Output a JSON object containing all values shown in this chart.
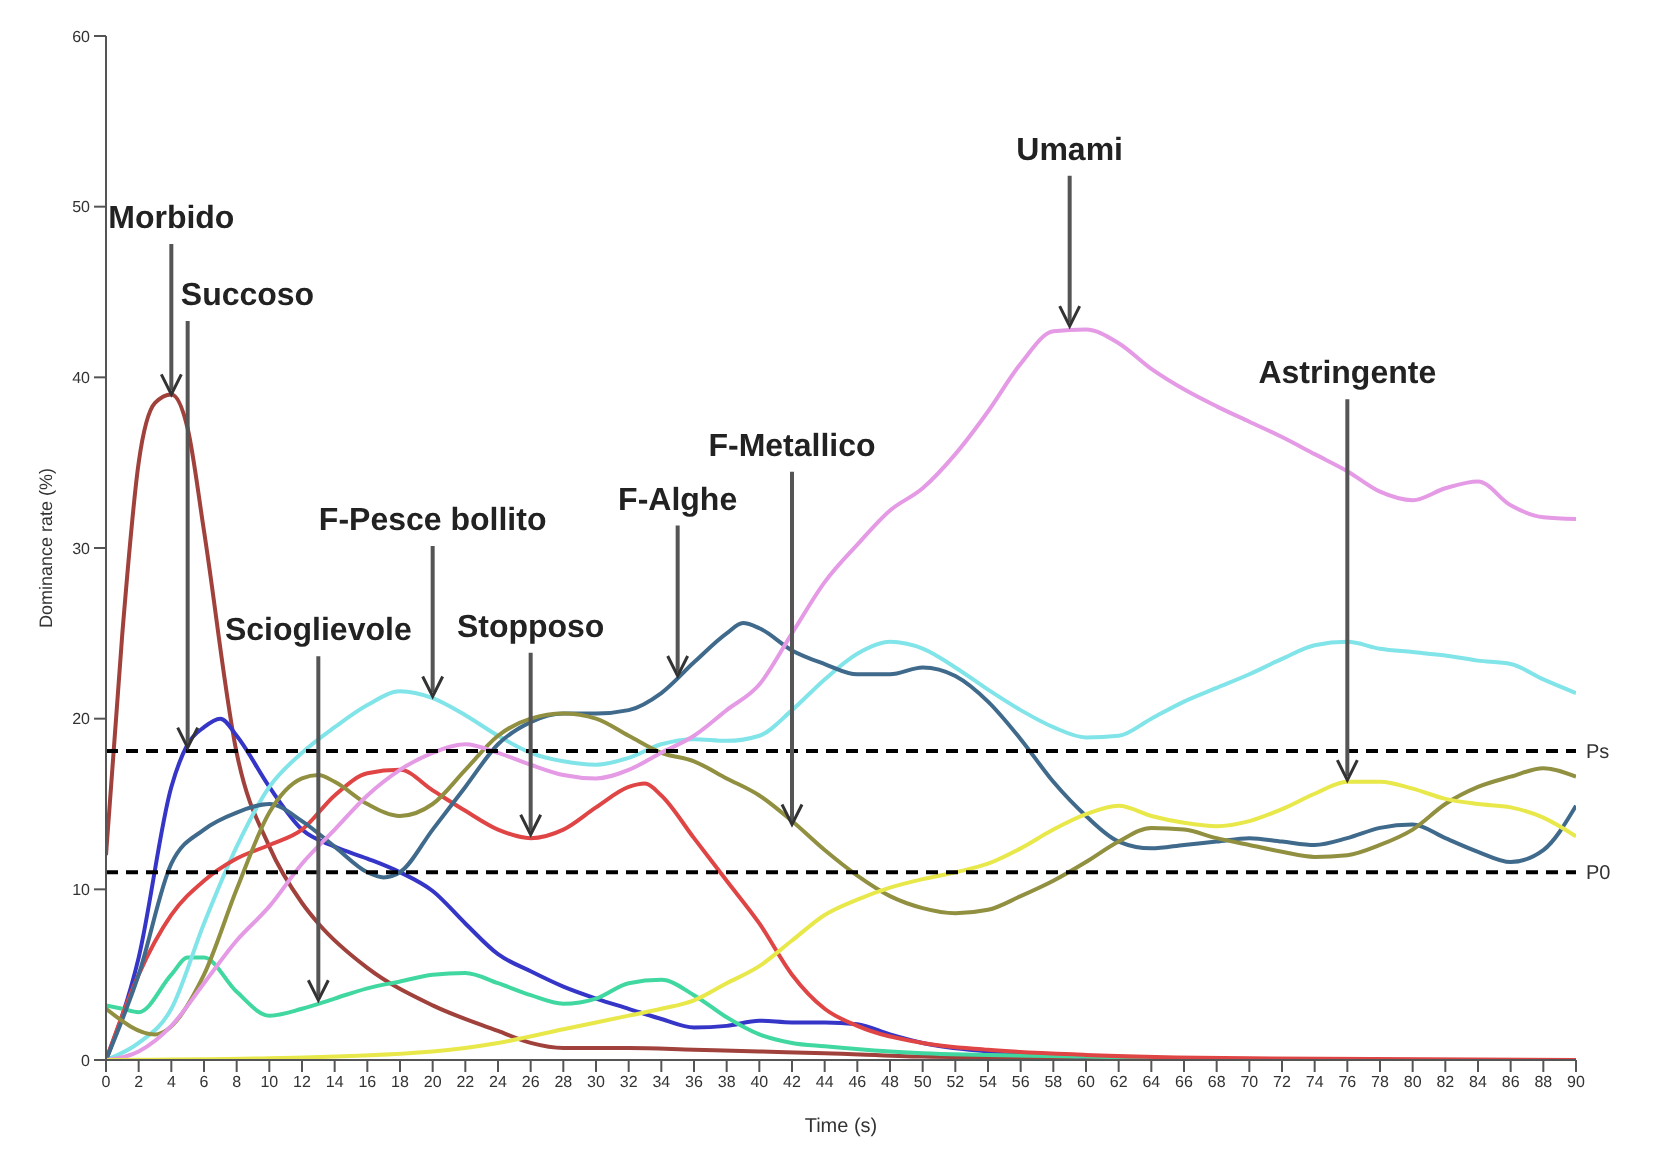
{
  "chart_data": {
    "type": "line",
    "xlabel": "Time (s)",
    "ylabel": "Dominance rate (%)",
    "xlim": [
      0,
      90
    ],
    "xticks": [
      0,
      2,
      4,
      6,
      8,
      10,
      12,
      14,
      16,
      18,
      20,
      22,
      24,
      26,
      28,
      30,
      32,
      34,
      36,
      38,
      40,
      42,
      44,
      46,
      48,
      50,
      52,
      54,
      56,
      58,
      60,
      62,
      64,
      66,
      68,
      70,
      72,
      74,
      76,
      78,
      80,
      82,
      84,
      86,
      88,
      90
    ],
    "ylim": [
      0,
      60
    ],
    "yticks": [
      0,
      10,
      20,
      30,
      40,
      50,
      60
    ],
    "grid": false,
    "legend": false,
    "marker": "none",
    "line_style": "solid",
    "series": [
      {
        "color": "#a0413c",
        "x": [
          0,
          1,
          2,
          3,
          4,
          5,
          6,
          8,
          10,
          12,
          13,
          16,
          20,
          24,
          26,
          28,
          32,
          36,
          40,
          44,
          50,
          60,
          70,
          90
        ],
        "values": [
          12,
          25,
          35,
          38.5,
          39,
          37,
          31,
          18,
          12.5,
          9.2,
          8,
          5.4,
          3.2,
          1.7,
          1,
          0.7,
          0.7,
          0.6,
          0.5,
          0.4,
          0.2,
          0.1,
          0,
          0
        ]
      },
      {
        "color": "#3535c8",
        "x": [
          0,
          2,
          4,
          5,
          6,
          7,
          8,
          10,
          12,
          14,
          16,
          18,
          20,
          22,
          24,
          26,
          28,
          30,
          32,
          34,
          36,
          38,
          40,
          42,
          44,
          46,
          48,
          50,
          54,
          60
        ],
        "values": [
          0,
          6,
          16,
          18.5,
          19.5,
          20,
          19,
          16,
          13.5,
          12.5,
          11.8,
          11,
          9.9,
          8,
          6.2,
          5.2,
          4.3,
          3.6,
          3,
          2.4,
          1.9,
          2,
          2.3,
          2.2,
          2.2,
          2.1,
          1.5,
          1,
          0.5,
          0.2
        ]
      },
      {
        "color": "#40d8a0",
        "x": [
          0,
          1,
          2,
          4,
          5,
          6,
          8,
          10,
          12,
          14,
          16,
          18,
          20,
          22,
          24,
          26,
          28,
          30,
          32,
          34,
          36,
          38,
          40,
          42,
          44,
          50,
          60,
          70,
          90
        ],
        "values": [
          3.2,
          3,
          2.8,
          5,
          6,
          6,
          4,
          2.6,
          3,
          3.6,
          4.2,
          4.6,
          5,
          5.1,
          4.5,
          3.8,
          3.3,
          3.6,
          4.5,
          4.7,
          3.8,
          2.5,
          1.5,
          1,
          0.8,
          0.4,
          0.2,
          0,
          0
        ]
      },
      {
        "color": "#80e4e8",
        "x": [
          0,
          2,
          4,
          6,
          8,
          10,
          12,
          14,
          16,
          18,
          20,
          22,
          24,
          26,
          28,
          30,
          32,
          34,
          36,
          38,
          40,
          42,
          44,
          46,
          48,
          50,
          52,
          54,
          56,
          58,
          60,
          62,
          64,
          66,
          68,
          70,
          72,
          74,
          76,
          78,
          80,
          82,
          84,
          86,
          88,
          90
        ],
        "values": [
          0,
          1,
          3,
          8,
          12.5,
          16,
          18,
          19.5,
          20.8,
          21.6,
          21.2,
          20.2,
          19,
          18,
          17.5,
          17.3,
          17.7,
          18.5,
          18.8,
          18.7,
          19,
          20.5,
          22.3,
          23.8,
          24.5,
          24.1,
          23,
          21.7,
          20.5,
          19.5,
          18.9,
          19,
          20,
          21,
          21.8,
          22.6,
          23.5,
          24.3,
          24.5,
          24.1,
          23.9,
          23.7,
          23.4,
          23.2,
          22.3,
          21.5
        ]
      },
      {
        "color": "#e04545",
        "x": [
          0,
          2,
          4,
          6,
          8,
          10,
          12,
          14,
          16,
          18,
          20,
          22,
          24,
          26,
          28,
          30,
          32,
          33,
          34,
          36,
          38,
          40,
          42,
          44,
          46,
          50,
          54,
          60,
          70,
          90
        ],
        "values": [
          0,
          5,
          8.5,
          10.5,
          11.8,
          12.6,
          13.5,
          15.5,
          16.8,
          17,
          15.8,
          14.6,
          13.5,
          13,
          13.5,
          14.8,
          16,
          16.2,
          15.5,
          13,
          10.5,
          8,
          5,
          3,
          2,
          1,
          0.6,
          0.3,
          0.1,
          0
        ]
      },
      {
        "color": "#3f6a8c",
        "x": [
          0,
          2,
          4,
          6,
          8,
          10,
          12,
          14,
          16,
          17,
          18,
          20,
          22,
          24,
          26,
          28,
          30,
          32,
          34,
          36,
          38,
          39,
          40,
          42,
          44,
          46,
          48,
          50,
          52,
          54,
          56,
          58,
          60,
          62,
          64,
          66,
          68,
          70,
          72,
          74,
          76,
          78,
          80,
          82,
          84,
          86,
          88,
          90
        ],
        "values": [
          0,
          5,
          11.5,
          13.5,
          14.5,
          15,
          14,
          12.5,
          11,
          10.7,
          11,
          13.5,
          16,
          18.5,
          19.8,
          20.3,
          20.3,
          20.5,
          21.5,
          23.3,
          25,
          25.6,
          25.3,
          24,
          23.2,
          22.6,
          22.6,
          23,
          22.5,
          21,
          18.8,
          16.3,
          14.3,
          12.8,
          12.4,
          12.6,
          12.8,
          13,
          12.8,
          12.6,
          13,
          13.6,
          13.8,
          13,
          12.2,
          11.6,
          12.3,
          14.9
        ]
      },
      {
        "color": "#909040",
        "x": [
          0,
          3,
          6,
          8,
          10,
          12,
          13,
          14,
          16,
          18,
          20,
          22,
          24,
          26,
          28,
          30,
          32,
          34,
          36,
          38,
          40,
          42,
          44,
          46,
          48,
          50,
          52,
          54,
          56,
          58,
          60,
          62,
          64,
          66,
          68,
          70,
          72,
          74,
          76,
          78,
          80,
          82,
          84,
          86,
          88,
          90
        ],
        "values": [
          3,
          1.5,
          5,
          10,
          14.5,
          16.5,
          16.7,
          16.3,
          15,
          14.3,
          15,
          17,
          19,
          20,
          20.3,
          20,
          19,
          18,
          17.5,
          16.5,
          15.5,
          14,
          12.3,
          10.8,
          9.6,
          8.9,
          8.6,
          8.8,
          9.6,
          10.5,
          11.6,
          12.8,
          13.6,
          13.5,
          13,
          12.6,
          12.2,
          11.9,
          12,
          12.6,
          13.5,
          15,
          16,
          16.6,
          17.1,
          16.6
        ]
      },
      {
        "color": "#e49ae4",
        "x": [
          0,
          2,
          4,
          6,
          8,
          10,
          12,
          14,
          16,
          18,
          20,
          22,
          24,
          26,
          28,
          30,
          32,
          34,
          36,
          38,
          40,
          42,
          44,
          46,
          48,
          50,
          52,
          54,
          56,
          58,
          60,
          62,
          64,
          66,
          68,
          70,
          72,
          74,
          76,
          78,
          80,
          82,
          84,
          86,
          88,
          90
        ],
        "values": [
          0,
          0.5,
          2,
          4.5,
          7,
          9,
          11.5,
          13.5,
          15.5,
          17,
          18,
          18.5,
          18,
          17.3,
          16.7,
          16.5,
          17,
          18,
          19,
          20.5,
          22,
          25,
          28,
          30.2,
          32.2,
          33.5,
          35.5,
          38,
          40.8,
          42.7,
          42.8,
          42,
          40.5,
          39.3,
          38.3,
          37.4,
          36.5,
          35.5,
          34.5,
          33.3,
          32.8,
          33.5,
          33.9,
          32.5,
          31.8,
          31.7
        ]
      },
      {
        "color": "#e8e84a",
        "x": [
          0,
          10,
          20,
          24,
          28,
          32,
          34,
          36,
          38,
          40,
          42,
          44,
          46,
          48,
          50,
          52,
          54,
          56,
          58,
          60,
          62,
          64,
          66,
          68,
          70,
          72,
          74,
          76,
          78,
          80,
          82,
          84,
          86,
          88,
          90
        ],
        "values": [
          0,
          0.1,
          0.5,
          1,
          1.8,
          2.6,
          3,
          3.5,
          4.5,
          5.5,
          7,
          8.5,
          9.4,
          10.1,
          10.6,
          11,
          11.5,
          12.4,
          13.5,
          14.4,
          14.9,
          14.3,
          13.9,
          13.7,
          14,
          14.7,
          15.6,
          16.3,
          16.3,
          15.9,
          15.3,
          15,
          14.8,
          14.2,
          13.1
        ]
      }
    ],
    "ref_lines": [
      {
        "axis": "y",
        "value": 18.1,
        "label": "Ps",
        "color": "#000000",
        "line_style": "dashed"
      },
      {
        "axis": "y",
        "value": 11,
        "label": "P0",
        "color": "#000000",
        "line_style": "dashed"
      }
    ],
    "annotations": [
      {
        "text": "Morbido",
        "x": 4,
        "y": 39
      },
      {
        "text": "Succoso",
        "x": 5,
        "y": 18.3
      },
      {
        "text": "Scioglievole",
        "x": 13,
        "y": 3.5
      },
      {
        "text": "F-Pesce bollito",
        "x": 20,
        "y": 21.3
      },
      {
        "text": "Stopposo",
        "x": 26,
        "y": 13.2
      },
      {
        "text": "F-Alghe",
        "x": 35,
        "y": 22.5
      },
      {
        "text": "F-Metallico",
        "x": 42,
        "y": 13.8
      },
      {
        "text": "Umami",
        "x": 59,
        "y": 43
      },
      {
        "text": "Astringente",
        "x": 76,
        "y": 16.4
      }
    ]
  }
}
